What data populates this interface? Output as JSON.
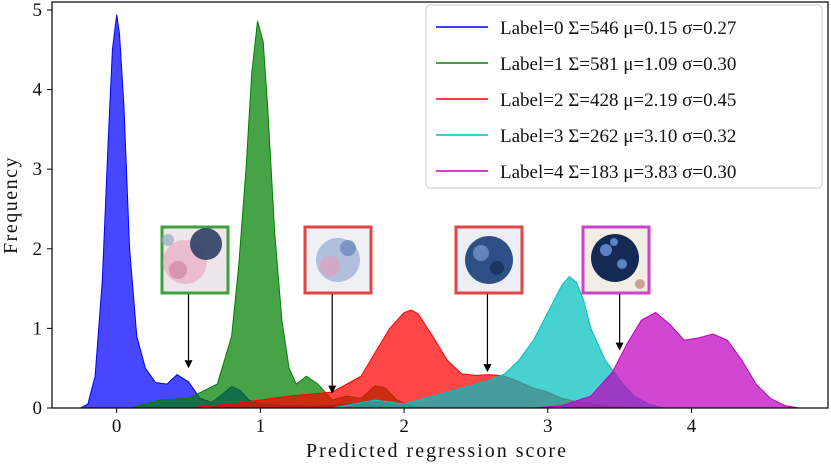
{
  "chart_data": {
    "type": "area",
    "title": "",
    "xlabel": "Predicted regression score",
    "ylabel": "Frequency",
    "xlim": [
      -0.45,
      4.95
    ],
    "ylim": [
      0,
      5.1
    ],
    "xticks": [
      0,
      1,
      2,
      3,
      4
    ],
    "yticks": [
      0,
      1,
      2,
      3,
      4,
      5
    ],
    "grid": false,
    "legend_position": "top-right",
    "series": [
      {
        "name": "Label=0 Σ=546 μ=0.15 σ=0.27",
        "color": "#0000ff",
        "x": [
          -0.25,
          -0.2,
          -0.15,
          -0.1,
          -0.06,
          -0.03,
          0.0,
          0.02,
          0.05,
          0.09,
          0.14,
          0.2,
          0.27,
          0.35,
          0.42,
          0.5,
          0.58,
          0.66,
          0.72,
          0.8,
          0.86,
          0.92,
          1.0,
          1.2,
          1.4,
          1.6,
          1.75,
          1.85,
          1.95
        ],
        "y": [
          0,
          0.05,
          0.4,
          1.6,
          3.3,
          4.5,
          4.94,
          4.7,
          3.8,
          2.0,
          0.9,
          0.5,
          0.32,
          0.3,
          0.42,
          0.33,
          0.12,
          0.07,
          0.15,
          0.27,
          0.22,
          0.1,
          0.05,
          0.03,
          0.02,
          0.05,
          0.04,
          0.01,
          0
        ]
      },
      {
        "name": "Label=1 Σ=581 μ=1.09 σ=0.30",
        "color": "#008000",
        "x": [
          0.1,
          0.3,
          0.5,
          0.7,
          0.8,
          0.85,
          0.9,
          0.94,
          0.98,
          1.02,
          1.05,
          1.1,
          1.15,
          1.2,
          1.25,
          1.32,
          1.4,
          1.5,
          1.6,
          1.7,
          1.8,
          1.87,
          1.95,
          2.05,
          2.2
        ],
        "y": [
          0,
          0.1,
          0.12,
          0.3,
          0.9,
          1.8,
          3.0,
          4.2,
          4.86,
          4.6,
          3.8,
          2.2,
          1.1,
          0.5,
          0.3,
          0.4,
          0.3,
          0.1,
          0.15,
          0.12,
          0.28,
          0.25,
          0.1,
          0.02,
          0
        ]
      },
      {
        "name": "Label=2 Σ=428 μ=2.19 σ=0.45",
        "color": "#ff0000",
        "x": [
          0.5,
          0.8,
          1.0,
          1.2,
          1.5,
          1.7,
          1.8,
          1.9,
          2.0,
          2.05,
          2.1,
          2.2,
          2.3,
          2.4,
          2.5,
          2.6,
          2.7,
          2.8,
          2.9,
          3.0,
          3.1,
          3.2,
          3.3,
          3.45,
          3.6
        ],
        "y": [
          0,
          0.05,
          0.1,
          0.15,
          0.2,
          0.4,
          0.7,
          1.0,
          1.2,
          1.23,
          1.18,
          0.9,
          0.6,
          0.43,
          0.41,
          0.42,
          0.4,
          0.33,
          0.25,
          0.2,
          0.12,
          0.08,
          0.05,
          0.02,
          0
        ]
      },
      {
        "name": "Label=3 Σ=262 μ=3.10 σ=0.32",
        "color": "#00bfbf",
        "x": [
          1.5,
          1.8,
          2.0,
          2.2,
          2.4,
          2.6,
          2.7,
          2.8,
          2.9,
          3.0,
          3.1,
          3.15,
          3.2,
          3.25,
          3.3,
          3.4,
          3.5,
          3.6,
          3.7,
          3.8
        ],
        "y": [
          0,
          0.1,
          0.05,
          0.15,
          0.25,
          0.35,
          0.43,
          0.6,
          0.85,
          1.2,
          1.55,
          1.65,
          1.58,
          1.35,
          1.0,
          0.6,
          0.35,
          0.15,
          0.05,
          0
        ]
      },
      {
        "name": "Label=4 Σ=183 μ=3.83 σ=0.30",
        "color": "#bf00bf",
        "x": [
          2.9,
          3.1,
          3.3,
          3.45,
          3.55,
          3.65,
          3.75,
          3.85,
          3.95,
          4.05,
          4.15,
          4.25,
          4.35,
          4.45,
          4.55,
          4.65,
          4.75
        ],
        "y": [
          0,
          0.03,
          0.15,
          0.45,
          0.8,
          1.1,
          1.2,
          1.05,
          0.85,
          0.88,
          0.93,
          0.85,
          0.6,
          0.3,
          0.12,
          0.03,
          0
        ]
      }
    ],
    "annotations": [
      {
        "image": "cell-image-green",
        "color": "#3ca33c",
        "arrow_x": 0.5,
        "arrow_y": 0.5
      },
      {
        "image": "cell-image-red-1",
        "color": "#e04444",
        "arrow_x": 1.5,
        "arrow_y": 0.18
      },
      {
        "image": "cell-image-red-2",
        "color": "#e04444",
        "arrow_x": 2.58,
        "arrow_y": 0.45
      },
      {
        "image": "cell-image-magenta",
        "color": "#cc44cc",
        "arrow_x": 3.5,
        "arrow_y": 0.72
      }
    ]
  }
}
